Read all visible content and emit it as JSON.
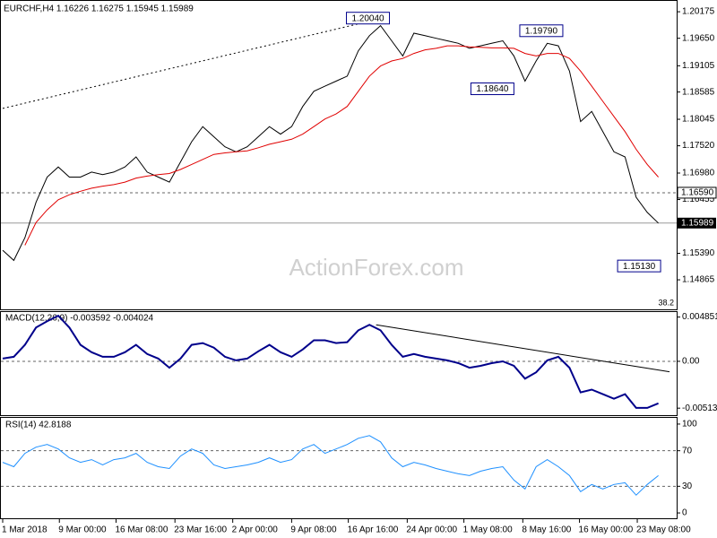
{
  "chart_data": [
    {
      "type": "line",
      "title": "EURCHF,H4  1.16226 1.16275 1.15945 1.15989",
      "watermark": "ActionForex.com",
      "xlim": [
        0,
        60
      ],
      "ylim": [
        1.1428,
        1.2039
      ],
      "yticks": [
        1.20175,
        {
          "value": 1.1965,
          "label": "1.19650"
        },
        1.19105,
        1.18585,
        1.18045,
        {
          "value": 1.1752,
          "label": "1.17520"
        },
        {
          "value": 1.1698,
          "label": "1.16980"
        },
        1.16455,
        {
          "value": 1.1539,
          "label": "1.15390"
        },
        1.14865
      ],
      "series": [
        {
          "color": "#000000",
          "values": [
            1.1545,
            1.1525,
            1.157,
            1.164,
            1.169,
            1.171,
            1.169,
            1.169,
            1.17,
            1.1695,
            1.17,
            1.171,
            1.173,
            1.17,
            1.169,
            1.168,
            1.172,
            1.176,
            1.179,
            1.177,
            1.175,
            1.174,
            1.175,
            1.177,
            1.179,
            1.1775,
            1.179,
            1.183,
            1.186,
            1.187,
            1.188,
            1.189,
            1.194,
            1.197,
            1.199,
            1.196,
            1.193,
            1.1975,
            1.197,
            1.1965,
            1.196,
            1.1955,
            1.1945,
            1.195,
            1.1955,
            1.196,
            1.193,
            1.188,
            1.192,
            1.1955,
            1.195,
            1.19,
            1.18,
            1.182,
            1.178,
            1.174,
            1.173,
            1.165,
            1.162,
            1.15989
          ]
        },
        {
          "color": "#e00000",
          "values": [
            null,
            null,
            1.1555,
            1.16,
            1.1625,
            1.1645,
            1.1655,
            1.1662,
            1.1668,
            1.1672,
            1.1675,
            1.168,
            1.1688,
            1.1692,
            1.1695,
            1.1697,
            1.1705,
            1.1715,
            1.1725,
            1.1735,
            1.1738,
            1.174,
            1.1742,
            1.1748,
            1.1755,
            1.176,
            1.1765,
            1.1775,
            1.179,
            1.1805,
            1.1815,
            1.183,
            1.186,
            1.189,
            1.191,
            1.192,
            1.1925,
            1.1935,
            1.1942,
            1.1945,
            1.195,
            1.195,
            1.1948,
            1.1947,
            1.1946,
            1.1946,
            1.1945,
            1.1935,
            1.193,
            1.1935,
            1.1935,
            1.1925,
            1.19,
            1.187,
            1.184,
            1.181,
            1.178,
            1.1745,
            1.1715,
            1.169
          ]
        }
      ],
      "trendlines": [
        {
          "color": "#000000",
          "x": [
            0,
            34
          ],
          "values": [
            1.1826,
            1.2004
          ]
        }
      ],
      "levels": [
        {
          "value": 1.1659,
          "label": "1.16590"
        }
      ],
      "last_price": 1.15989,
      "annotations": [
        {
          "x": 34.8,
          "value": 1.2004,
          "label": "1.20040"
        },
        {
          "x": 50.4,
          "value": 1.1979,
          "label": "1.19790"
        },
        {
          "x": 46,
          "value": 1.1864,
          "label": "1.18640"
        },
        {
          "x": 59.2,
          "value": 1.1513,
          "label": "1.15130"
        }
      ],
      "fib_label": "38.2"
    },
    {
      "type": "line",
      "title": "MACD(12,26,9) -0.003592 -0.004024",
      "xlim": [
        0,
        60
      ],
      "ylim": [
        -0.0059,
        0.0054
      ],
      "yticks": [
        0.004851,
        {
          "value": 0,
          "label": "0.00"
        },
        -0.005132
      ],
      "levels": [
        0
      ],
      "series": [
        {
          "color": "#00008b",
          "values": [
            0.0003,
            0.0005,
            0.0018,
            0.0037,
            0.0044,
            0.005,
            0.0037,
            0.0018,
            0.001,
            0.0005,
            0.0005,
            0.001,
            0.0018,
            0.0008,
            0.0003,
            -0.0007,
            0.0003,
            0.0018,
            0.002,
            0.0015,
            0.0005,
            0.0001,
            0.0003,
            0.0011,
            0.0018,
            0.001,
            0.0005,
            0.0013,
            0.0023,
            0.0023,
            0.002,
            0.0021,
            0.0034,
            0.004,
            0.0034,
            0.0018,
            0.0005,
            0.0008,
            0.0005,
            0.0003,
            0.0001,
            -0.0002,
            -0.0007,
            -0.0005,
            -0.0002,
            0,
            -0.0005,
            -0.0019,
            -0.0012,
            0.0001,
            0.0005,
            -0.0007,
            -0.0034,
            -0.0031,
            -0.0036,
            -0.0041,
            -0.0036,
            -0.0051,
            -0.0051,
            -0.0046
          ]
        }
      ],
      "trendlines": [
        {
          "color": "#000000",
          "x": [
            33.6,
            60
          ],
          "values": [
            0.004,
            -0.00115
          ]
        }
      ]
    },
    {
      "type": "line",
      "title": "RSI(14) 42.8188",
      "xlim": [
        0,
        60
      ],
      "ylim": [
        -6,
        107
      ],
      "yticks": [
        100,
        70,
        30,
        0
      ],
      "levels": [
        70,
        30
      ],
      "series": [
        {
          "color": "#1e90ff",
          "values": [
            57,
            52,
            67,
            74,
            77,
            72,
            62,
            57,
            60,
            54,
            60,
            62,
            67,
            57,
            52,
            50,
            64,
            72,
            67,
            54,
            50,
            52,
            54,
            57,
            62,
            57,
            60,
            72,
            77,
            67,
            72,
            77,
            84,
            87,
            80,
            62,
            52,
            57,
            54,
            50,
            47,
            44,
            42,
            47,
            50,
            52,
            37,
            27,
            52,
            60,
            52,
            42,
            24,
            32,
            27,
            32,
            34,
            20,
            32,
            42
          ]
        }
      ],
      "xticks": [
        {
          "value": 0,
          "label": "1 Mar 2018"
        },
        {
          "value": 5.1,
          "label": "9 Mar 00:00"
        },
        {
          "value": 10.2,
          "label": "16 Mar 08:00"
        },
        {
          "value": 15.5,
          "label": "23 Mar 16:00"
        },
        {
          "value": 20.7,
          "label": "2 Apr 00:00"
        },
        {
          "value": 26,
          "label": "9 Apr 08:00"
        },
        {
          "value": 31.1,
          "label": "16 Apr 16:00"
        },
        {
          "value": 36.4,
          "label": "24 Apr 00:00"
        },
        {
          "value": 41.5,
          "label": "1 May 08:00"
        },
        {
          "value": 46.8,
          "label": "8 May 16:00"
        },
        {
          "value": 51.9,
          "label": "16 May 00:00"
        },
        {
          "value": 57.1,
          "label": "23 May 08:00"
        }
      ]
    }
  ]
}
